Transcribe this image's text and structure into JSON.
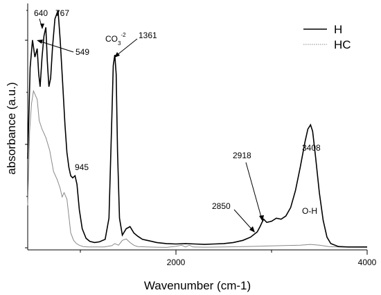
{
  "chart_data": {
    "type": "line",
    "xlabel": "Wavenumber (cm-1)",
    "ylabel": "absorbance (a.u.)",
    "xlim": [
      450,
      4000
    ],
    "x_ticks": [
      "2000",
      "4000"
    ],
    "legend": {
      "placement": "top-right"
    },
    "series": [
      {
        "name": "H",
        "style": "solid",
        "color": "#000000",
        "x": [
          450,
          475,
          500,
          525,
          549,
          565,
          580,
          600,
          620,
          640,
          655,
          672,
          690,
          710,
          735,
          767,
          790,
          815,
          840,
          860,
          880,
          900,
          920,
          945,
          965,
          990,
          1020,
          1060,
          1100,
          1150,
          1200,
          1260,
          1300,
          1330,
          1345,
          1361,
          1375,
          1390,
          1410,
          1440,
          1480,
          1520,
          1560,
          1600,
          1650,
          1700,
          1750,
          1800,
          1900,
          2000,
          2100,
          2200,
          2300,
          2400,
          2500,
          2600,
          2700,
          2780,
          2850,
          2880,
          2900,
          2918,
          2950,
          3000,
          3050,
          3100,
          3150,
          3200,
          3250,
          3300,
          3350,
          3380,
          3408,
          3430,
          3460,
          3500,
          3540,
          3580,
          3620,
          3700,
          3800,
          3900,
          4000
        ],
        "y": [
          0.42,
          0.85,
          0.98,
          0.9,
          0.94,
          0.82,
          0.76,
          0.9,
          1.0,
          1.04,
          0.88,
          0.76,
          0.8,
          0.95,
          1.08,
          1.12,
          0.98,
          0.78,
          0.58,
          0.45,
          0.38,
          0.34,
          0.33,
          0.34,
          0.3,
          0.18,
          0.09,
          0.045,
          0.03,
          0.025,
          0.028,
          0.04,
          0.14,
          0.62,
          0.86,
          0.91,
          0.82,
          0.45,
          0.14,
          0.06,
          0.09,
          0.1,
          0.07,
          0.055,
          0.04,
          0.035,
          0.03,
          0.025,
          0.02,
          0.018,
          0.02,
          0.018,
          0.016,
          0.018,
          0.02,
          0.025,
          0.035,
          0.05,
          0.075,
          0.1,
          0.12,
          0.135,
          0.12,
          0.125,
          0.14,
          0.135,
          0.15,
          0.19,
          0.27,
          0.38,
          0.5,
          0.56,
          0.58,
          0.55,
          0.43,
          0.26,
          0.13,
          0.05,
          0.02,
          0.006,
          0.004,
          0.004,
          0.004
        ]
      },
      {
        "name": "HC",
        "style": "dotted",
        "color": "#888888",
        "x": [
          450,
          470,
          490,
          510,
          530,
          549,
          570,
          600,
          640,
          680,
          720,
          760,
          790,
          810,
          830,
          860,
          880,
          900,
          930,
          960,
          990,
          1030,
          1080,
          1150,
          1250,
          1330,
          1361,
          1400,
          1440,
          1480,
          1520,
          1560,
          1600,
          1700,
          1800,
          1900,
          2000,
          2060,
          2100,
          2140,
          2180,
          2300,
          2500,
          2700,
          2900,
          3100,
          3300,
          3408,
          3500,
          3600,
          3700,
          4000
        ],
        "y": [
          0.2,
          0.55,
          0.68,
          0.74,
          0.72,
          0.7,
          0.6,
          0.56,
          0.52,
          0.46,
          0.36,
          0.32,
          0.28,
          0.24,
          0.26,
          0.23,
          0.15,
          0.07,
          0.035,
          0.02,
          0.012,
          0.006,
          0.004,
          0.004,
          0.004,
          0.01,
          0.02,
          0.012,
          0.035,
          0.042,
          0.025,
          0.012,
          0.006,
          0.004,
          0.003,
          0.002,
          0.007,
          0.012,
          0.004,
          0.012,
          0.004,
          0.003,
          0.004,
          0.006,
          0.008,
          0.01,
          0.012,
          0.016,
          0.012,
          0.006,
          0.004,
          0.003
        ]
      }
    ],
    "annotations": [
      {
        "text": "640",
        "x": 640,
        "arrow": true
      },
      {
        "text": "767",
        "x": 767,
        "arrow": false
      },
      {
        "text": "549",
        "x": 549,
        "arrow": true
      },
      {
        "text": "1361",
        "x": 1361,
        "arrow": true
      },
      {
        "text": "945",
        "x": 945,
        "arrow": false
      },
      {
        "text": "2918",
        "x": 2918,
        "arrow": true
      },
      {
        "text": "2850",
        "x": 2850,
        "arrow": true
      },
      {
        "text": "3408",
        "x": 3408,
        "arrow": false
      },
      {
        "text": "O-H",
        "x": 3408,
        "arrow": false
      }
    ],
    "co3_label": {
      "base": "CO",
      "sub": "3",
      "sup": "-2"
    }
  }
}
